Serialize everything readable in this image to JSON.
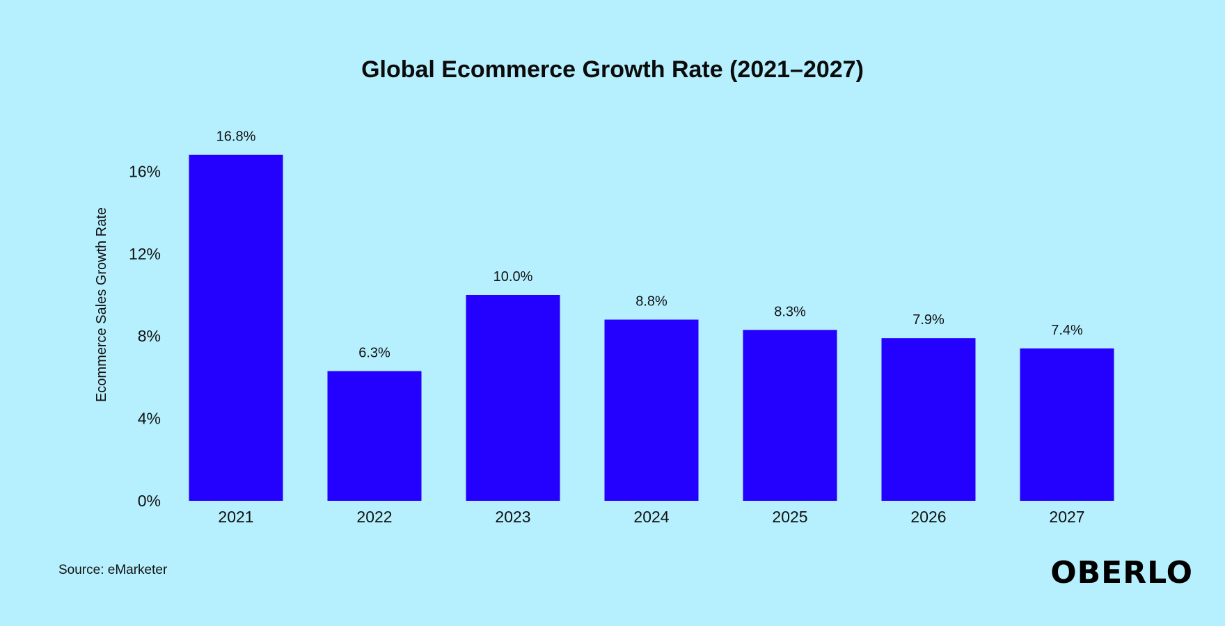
{
  "chart_data": {
    "type": "bar",
    "title": "Global Ecommerce Growth Rate (2021–2027)",
    "xlabel": "",
    "ylabel": "Ecommerce Sales Growth Rate",
    "categories": [
      "2021",
      "2022",
      "2023",
      "2024",
      "2025",
      "2026",
      "2027"
    ],
    "values": [
      16.8,
      6.3,
      10.0,
      8.8,
      8.3,
      7.9,
      7.4
    ],
    "data_labels": [
      "16.8%",
      "6.3%",
      "10.0%",
      "8.8%",
      "8.3%",
      "7.9%",
      "7.4%"
    ],
    "ylim": [
      0,
      16
    ],
    "yticks": [
      0,
      4,
      8,
      12,
      16
    ],
    "ytick_labels": [
      "0%",
      "4%",
      "8%",
      "12%",
      "16%"
    ],
    "grid": false,
    "legend": "none",
    "colors": {
      "background": "#b6f0fe",
      "bar": "#2400ff",
      "text": "#0b0b0b"
    }
  },
  "footer": {
    "source": "Source: eMarketer",
    "logo": "OBERLO"
  }
}
